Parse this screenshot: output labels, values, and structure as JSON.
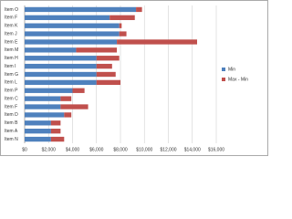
{
  "chart_data": {
    "type": "stacked-barh",
    "categories": [
      "Item O",
      "Item F",
      "Item K",
      "Item J",
      "Item E",
      "Item M",
      "Item H",
      "Item I",
      "Item G",
      "Item L",
      "Item P",
      "Item C",
      "Item F",
      "Item D",
      "Item B",
      "Item A",
      "Item N"
    ],
    "series": [
      {
        "name": "Min",
        "color": "#4f81bd",
        "values": [
          9300,
          7100,
          7900,
          7900,
          7700,
          4300,
          6000,
          6000,
          6000,
          6000,
          4000,
          3000,
          3000,
          3300,
          2200,
          2200,
          2200
        ]
      },
      {
        "name": "Max - Min",
        "color": "#c0504d",
        "values": [
          500,
          2100,
          200,
          600,
          6700,
          3400,
          1900,
          1300,
          1600,
          2000,
          1000,
          900,
          2300,
          600,
          800,
          800,
          1100
        ]
      }
    ],
    "xlim": [
      0,
      16000
    ],
    "xticks": [
      {
        "value": 0,
        "label": "$0"
      },
      {
        "value": 2000,
        "label": "$2,000"
      },
      {
        "value": 4000,
        "label": "$4,000"
      },
      {
        "value": 6000,
        "label": "$6,000"
      },
      {
        "value": 8000,
        "label": "$8,000"
      },
      {
        "value": 10000,
        "label": "$10,000"
      },
      {
        "value": 12000,
        "label": "$12,000"
      },
      {
        "value": 14000,
        "label": "$14,000"
      },
      {
        "value": 16000,
        "label": "$16,000"
      }
    ],
    "grid": true,
    "legend": "right"
  }
}
